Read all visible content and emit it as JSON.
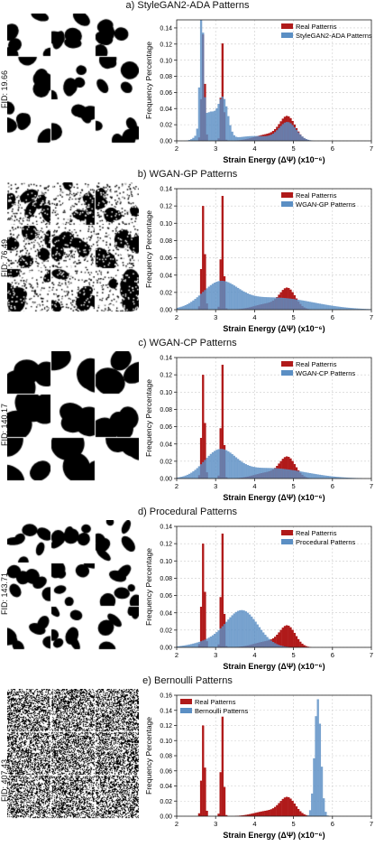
{
  "colors": {
    "real": "#b01a1a",
    "generated": "#5b8fc4",
    "grid": "#cccccc"
  },
  "common": {
    "xlabel": "Strain Energy (ΔΨ) (x10⁻⁶)",
    "ylabel": "Frequency Percentage",
    "real_label": "Real Patterns"
  },
  "panels": [
    {
      "title": "a) StyleGAN2-ADA Patterns",
      "fid": "FID: 19.66",
      "gen_label": "StyleGAN2-ADA Patterns",
      "thumb_style": "blobs"
    },
    {
      "title": "b) WGAN-GP Patterns",
      "fid": "FID: 76.49",
      "gen_label": "WGAN-GP Patterns",
      "thumb_style": "noisy"
    },
    {
      "title": "c) WGAN-CP Patterns",
      "fid": "FID: 140.17",
      "gen_label": "WGAN-CP Patterns",
      "thumb_style": "large"
    },
    {
      "title": "d) Procedural Patterns",
      "fid": "FID: 143.71",
      "gen_label": "Procedural Patterns",
      "thumb_style": "mixed"
    },
    {
      "title": "e) Bernoulli Patterns",
      "fid": "FID: 407.43",
      "gen_label": "Bernoulli Patterns",
      "thumb_style": "noise"
    }
  ],
  "chart_data": [
    {
      "type": "bar",
      "title": "a) StyleGAN2-ADA Patterns",
      "xlabel": "Strain Energy (ΔΨ) (x10⁻⁶)",
      "ylabel": "Frequency Percentage",
      "xlim": [
        2,
        7
      ],
      "ylim": [
        0,
        0.15
      ],
      "xticks": [
        "2",
        "3",
        "4",
        "5",
        "6",
        "7"
      ],
      "yticks": [
        "0.00",
        "0.02",
        "0.04",
        "0.06",
        "0.08",
        "0.10",
        "0.12",
        "0.14"
      ],
      "legend": "top-right",
      "grid": true,
      "series": [
        {
          "name": "Real Patterns",
          "color": "#b01a1a",
          "components": [
            {
              "center": 2.68,
              "width": 0.04,
              "peak": 0.133
            },
            {
              "center": 3.17,
              "width": 0.035,
              "peak": 0.122
            },
            {
              "center": 4.85,
              "width": 0.2,
              "peak": 0.028
            },
            {
              "center": 4.35,
              "width": 0.35,
              "peak": 0.008
            }
          ]
        },
        {
          "name": "StyleGAN2-ADA Patterns",
          "color": "#5b8fc4",
          "components": [
            {
              "center": 2.64,
              "width": 0.045,
              "peak": 0.149
            },
            {
              "center": 2.85,
              "width": 0.2,
              "peak": 0.035
            },
            {
              "center": 3.2,
              "width": 0.12,
              "peak": 0.045
            },
            {
              "center": 4.85,
              "width": 0.22,
              "peak": 0.022
            },
            {
              "center": 4.0,
              "width": 0.5,
              "peak": 0.006
            }
          ]
        }
      ]
    },
    {
      "type": "bar",
      "title": "b) WGAN-GP Patterns",
      "xlabel": "Strain Energy (ΔΨ) (x10⁻⁶)",
      "ylabel": "Frequency Percentage",
      "xlim": [
        2,
        7
      ],
      "ylim": [
        0,
        0.14
      ],
      "xticks": [
        "2",
        "3",
        "4",
        "5",
        "6",
        "7"
      ],
      "yticks": [
        "0.00",
        "0.02",
        "0.04",
        "0.06",
        "0.08",
        "0.10",
        "0.12",
        "0.14"
      ],
      "legend": "top-right",
      "grid": true,
      "series": [
        {
          "name": "Real Patterns",
          "color": "#b01a1a",
          "components": [
            {
              "center": 2.68,
              "width": 0.04,
              "peak": 0.121
            },
            {
              "center": 3.17,
              "width": 0.035,
              "peak": 0.133
            },
            {
              "center": 4.85,
              "width": 0.2,
              "peak": 0.023
            },
            {
              "center": 4.35,
              "width": 0.35,
              "peak": 0.007
            }
          ]
        },
        {
          "name": "WGAN-GP Patterns",
          "color": "#5b8fc4",
          "components": [
            {
              "center": 3.1,
              "width": 0.45,
              "peak": 0.028
            },
            {
              "center": 4.5,
              "width": 1.0,
              "peak": 0.014
            }
          ]
        }
      ]
    },
    {
      "type": "bar",
      "title": "c) WGAN-CP Patterns",
      "xlabel": "Strain Energy (ΔΨ) (x10⁻⁶)",
      "ylabel": "Frequency Percentage",
      "xlim": [
        2,
        7
      ],
      "ylim": [
        0,
        0.14
      ],
      "xticks": [
        "2",
        "3",
        "4",
        "5",
        "6",
        "7"
      ],
      "yticks": [
        "0.00",
        "0.02",
        "0.04",
        "0.06",
        "0.08",
        "0.10",
        "0.12",
        "0.14"
      ],
      "legend": "top-right",
      "grid": true,
      "series": [
        {
          "name": "Real Patterns",
          "color": "#b01a1a",
          "components": [
            {
              "center": 2.68,
              "width": 0.04,
              "peak": 0.121
            },
            {
              "center": 3.17,
              "width": 0.035,
              "peak": 0.133
            },
            {
              "center": 4.85,
              "width": 0.2,
              "peak": 0.023
            },
            {
              "center": 4.35,
              "width": 0.35,
              "peak": 0.007
            }
          ]
        },
        {
          "name": "WGAN-CP Patterns",
          "color": "#5b8fc4",
          "components": [
            {
              "center": 3.1,
              "width": 0.4,
              "peak": 0.03
            },
            {
              "center": 4.4,
              "width": 0.9,
              "peak": 0.012
            }
          ]
        }
      ]
    },
    {
      "type": "bar",
      "title": "d) Procedural Patterns",
      "xlabel": "Strain Energy (ΔΨ) (x10⁻⁶)",
      "ylabel": "Frequency Percentage",
      "xlim": [
        2,
        7
      ],
      "ylim": [
        0,
        0.14
      ],
      "xticks": [
        "2",
        "3",
        "4",
        "5",
        "6",
        "7"
      ],
      "yticks": [
        "0.00",
        "0.02",
        "0.04",
        "0.06",
        "0.08",
        "0.10",
        "0.12",
        "0.14"
      ],
      "legend": "top-right",
      "grid": true,
      "series": [
        {
          "name": "Real Patterns",
          "color": "#b01a1a",
          "components": [
            {
              "center": 2.68,
              "width": 0.04,
              "peak": 0.121
            },
            {
              "center": 3.17,
              "width": 0.035,
              "peak": 0.133
            },
            {
              "center": 4.85,
              "width": 0.2,
              "peak": 0.023
            },
            {
              "center": 4.35,
              "width": 0.35,
              "peak": 0.007
            }
          ]
        },
        {
          "name": "Procedural Patterns",
          "color": "#5b8fc4",
          "components": [
            {
              "center": 3.7,
              "width": 0.4,
              "peak": 0.04
            },
            {
              "center": 3.0,
              "width": 0.5,
              "peak": 0.008
            }
          ]
        }
      ]
    },
    {
      "type": "bar",
      "title": "e) Bernoulli Patterns",
      "xlabel": "Strain Energy (ΔΨ) (x10⁻⁶)",
      "ylabel": "Frequency Percentage",
      "xlim": [
        2,
        7
      ],
      "ylim": [
        0,
        0.16
      ],
      "xticks": [
        "2",
        "3",
        "4",
        "5",
        "6",
        "7"
      ],
      "yticks": [
        "0.00",
        "0.02",
        "0.04",
        "0.06",
        "0.08",
        "0.10",
        "0.12",
        "0.14",
        "0.16"
      ],
      "legend": "top-left",
      "grid": true,
      "series": [
        {
          "name": "Real Patterns",
          "color": "#b01a1a",
          "components": [
            {
              "center": 2.68,
              "width": 0.04,
              "peak": 0.121
            },
            {
              "center": 3.17,
              "width": 0.035,
              "peak": 0.133
            },
            {
              "center": 4.85,
              "width": 0.2,
              "peak": 0.023
            },
            {
              "center": 4.35,
              "width": 0.35,
              "peak": 0.007
            }
          ]
        },
        {
          "name": "Bernoulli Patterns",
          "color": "#5b8fc4",
          "components": [
            {
              "center": 5.62,
              "width": 0.08,
              "peak": 0.155
            }
          ]
        }
      ]
    }
  ]
}
